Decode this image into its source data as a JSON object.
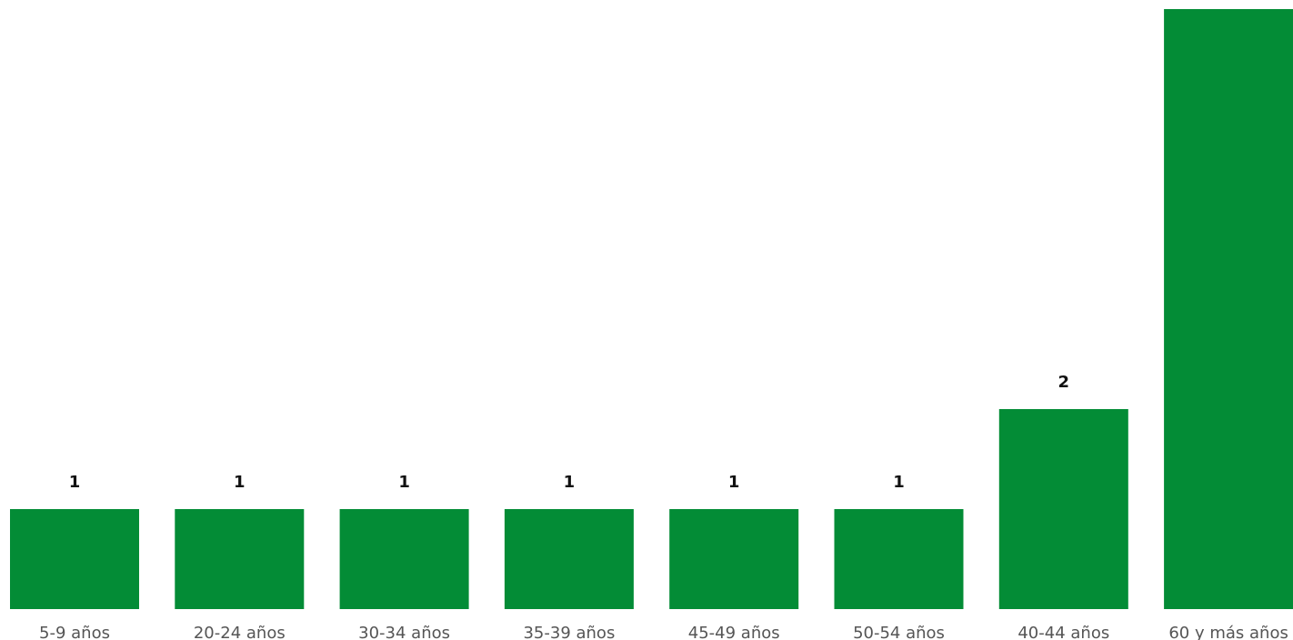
{
  "chart_data": {
    "type": "bar",
    "categories": [
      "5-9 años",
      "20-24 años",
      "30-34 años",
      "35-39 años",
      "45-49 años",
      "50-54 años",
      "40-44 años",
      "60 y más años"
    ],
    "values": [
      1,
      1,
      1,
      1,
      1,
      1,
      2,
      6
    ],
    "data_labels": [
      "1",
      "1",
      "1",
      "1",
      "1",
      "1",
      "2",
      ""
    ],
    "title": "",
    "xlabel": "",
    "ylabel": "",
    "grid": false,
    "legend": "none",
    "bar_color": "#038C36"
  }
}
